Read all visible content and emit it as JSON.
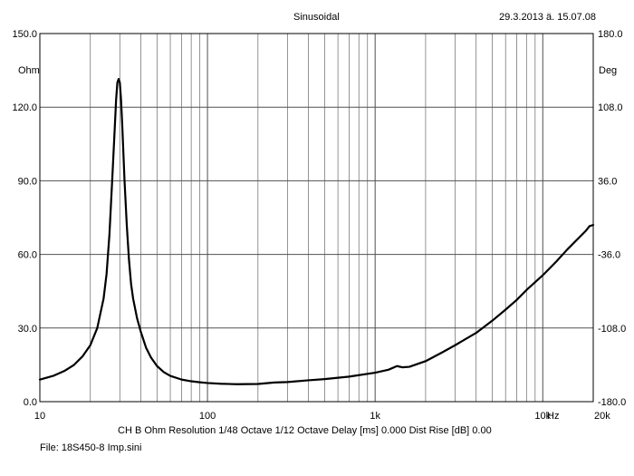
{
  "header": {
    "title": "Sinusoidal",
    "timestamp": "29.3.2013 ä. 15.07.08"
  },
  "footer": {
    "settings": "CH B   Ohm   Resolution 1/48 Octave   1/12 Octave   Delay [ms] 0.000   Dist Rise [dB] 0.00",
    "file": "File: 18S450-8 Imp.sini"
  },
  "chart_data": {
    "type": "line",
    "x_scale": "log",
    "xlim": [
      10,
      20000
    ],
    "ylim": [
      0,
      150
    ],
    "y2lim": [
      -180,
      180
    ],
    "grid": true,
    "legend": "none",
    "line_color": "#000000",
    "ylabel": "Ohm",
    "y2label": "Deg",
    "xunit": "Hz",
    "x_ticks": [
      {
        "value": 10,
        "label": "10"
      },
      {
        "value": 100,
        "label": "100"
      },
      {
        "value": 1000,
        "label": "1k"
      },
      {
        "value": 10000,
        "label": "10k"
      },
      {
        "value": 20000,
        "label": "20k"
      }
    ],
    "y_ticks": [
      {
        "value": 0,
        "label": "0.0"
      },
      {
        "value": 30,
        "label": "30.0"
      },
      {
        "value": 60,
        "label": "60.0"
      },
      {
        "value": 90,
        "label": "90.0"
      },
      {
        "value": 120,
        "label": "120.0"
      },
      {
        "value": 150,
        "label": "150.0"
      }
    ],
    "y2_ticks": [
      {
        "value": -180,
        "label": "-180.0"
      },
      {
        "value": -108,
        "label": "-108.0"
      },
      {
        "value": -36,
        "label": "-36.0"
      },
      {
        "value": 36,
        "label": "36.0"
      },
      {
        "value": 108,
        "label": "108.0"
      },
      {
        "value": 180,
        "label": "180.0"
      }
    ],
    "series": [
      {
        "x": [
          10,
          12,
          14,
          16,
          18,
          20,
          22,
          24,
          25,
          26,
          27,
          28,
          28.5,
          29,
          29.5,
          30,
          30.5,
          31,
          32,
          33,
          34,
          35,
          36,
          38,
          40,
          43,
          46,
          50,
          55,
          60,
          70,
          80,
          90,
          100,
          120,
          150,
          200,
          250,
          300,
          400,
          500,
          700,
          1000,
          1200,
          1350,
          1450,
          1600,
          2000,
          2500,
          3000,
          4000,
          5000,
          6000,
          7000,
          8000,
          10000,
          12000,
          14000,
          16000,
          18000,
          19000,
          20000
        ],
        "values": [
          9,
          10.5,
          12.5,
          15,
          18.5,
          23,
          30,
          42,
          52,
          68,
          90,
          112,
          123,
          130,
          131.5,
          130,
          123,
          113,
          90,
          72,
          58,
          48,
          42,
          34,
          28.5,
          22,
          18,
          14.5,
          12,
          10.5,
          9,
          8.3,
          7.9,
          7.6,
          7.3,
          7.1,
          7.2,
          7.8,
          8,
          8.7,
          9.2,
          10.2,
          11.8,
          13,
          14.5,
          14,
          14.2,
          16.5,
          20,
          23,
          28,
          33,
          37.5,
          41.5,
          45.5,
          51.5,
          57,
          62,
          66,
          69.5,
          71.5,
          72
        ]
      }
    ]
  }
}
